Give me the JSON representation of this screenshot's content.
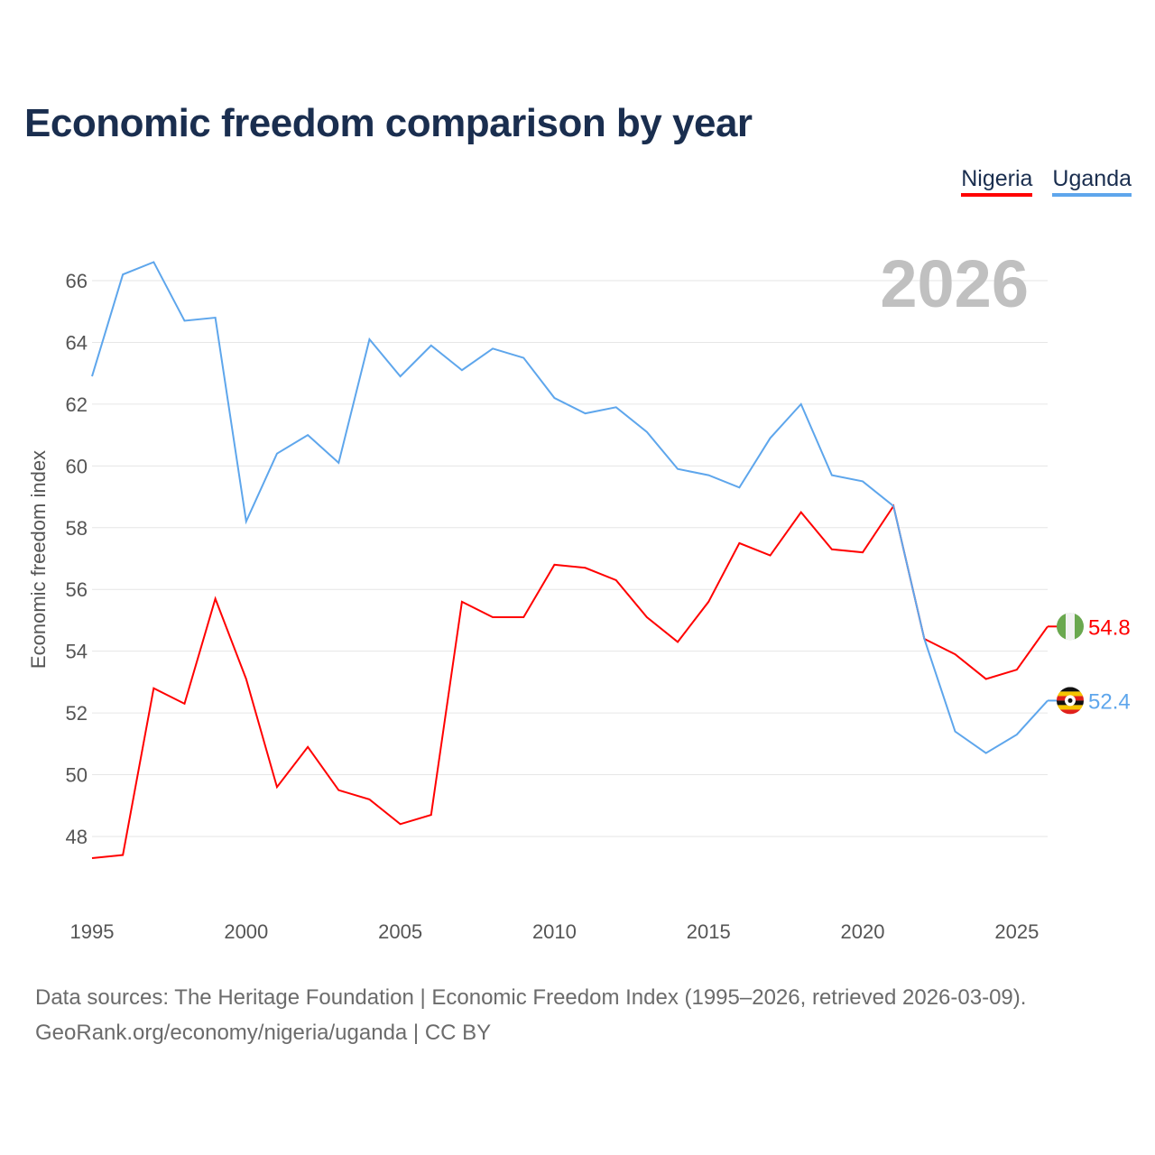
{
  "title": "Economic freedom comparison by year",
  "legend": [
    {
      "label": "Nigeria",
      "color": "#ff0000"
    },
    {
      "label": "Uganda",
      "color": "#5ea6ec"
    }
  ],
  "year_label": "2026",
  "source_line1": "Data sources: The Heritage Foundation | Economic Freedom Index (1995–2026, retrieved 2026-03-09).",
  "source_line2": "GeoRank.org/economy/nigeria/uganda | CC BY",
  "chart_data": {
    "type": "line",
    "title": "Economic freedom comparison by year",
    "xlabel": "",
    "ylabel": "Economic freedom index",
    "x": [
      1995,
      1996,
      1997,
      1998,
      1999,
      2000,
      2001,
      2002,
      2003,
      2004,
      2005,
      2006,
      2007,
      2008,
      2009,
      2010,
      2011,
      2012,
      2013,
      2014,
      2015,
      2016,
      2017,
      2018,
      2019,
      2020,
      2021,
      2022,
      2023,
      2024,
      2025,
      2026
    ],
    "xticks": [
      1995,
      2000,
      2005,
      2010,
      2015,
      2020,
      2025
    ],
    "yticks": [
      48,
      50,
      52,
      54,
      56,
      58,
      60,
      62,
      64,
      66
    ],
    "xlim": [
      1995,
      2026
    ],
    "ylim": [
      45.5,
      67.5
    ],
    "grid": true,
    "legend_position": "top-right",
    "series": [
      {
        "name": "Nigeria",
        "color": "#ff0000",
        "end_label": "54.8",
        "flag": "nigeria-flag",
        "values": [
          47.3,
          47.4,
          52.8,
          52.3,
          55.7,
          53.1,
          49.6,
          50.9,
          49.5,
          49.2,
          48.4,
          48.7,
          55.6,
          55.1,
          55.1,
          56.8,
          56.7,
          56.3,
          55.1,
          54.3,
          55.6,
          57.5,
          57.1,
          58.5,
          57.3,
          57.2,
          58.7,
          54.4,
          53.9,
          53.1,
          53.4,
          54.8
        ]
      },
      {
        "name": "Uganda",
        "color": "#5ea6ec",
        "end_label": "52.4",
        "flag": "uganda-flag",
        "values": [
          62.9,
          66.2,
          66.6,
          64.7,
          64.8,
          58.2,
          60.4,
          61.0,
          60.1,
          64.1,
          62.9,
          63.9,
          63.1,
          63.8,
          63.5,
          62.2,
          61.7,
          61.9,
          61.1,
          59.9,
          59.7,
          59.3,
          60.9,
          62.0,
          59.7,
          59.5,
          58.7,
          54.4,
          51.4,
          50.7,
          51.3,
          52.4
        ]
      }
    ]
  }
}
